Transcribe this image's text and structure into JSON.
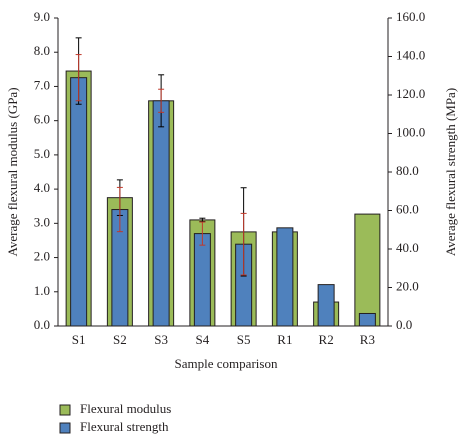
{
  "chart_data": {
    "type": "bar",
    "categories": [
      "S1",
      "S2",
      "S3",
      "S4",
      "S5",
      "R1",
      "R2",
      "R3"
    ],
    "series": [
      {
        "name": "Flexural modulus",
        "color": "#9bbb59",
        "axis": "y",
        "errors_color": "#000000",
        "values": [
          7.45,
          3.75,
          6.58,
          3.1,
          2.75,
          2.75,
          0.7,
          3.27
        ],
        "errors": [
          0.97,
          0.52,
          0.76,
          0.05,
          1.29,
          null,
          null,
          null
        ]
      },
      {
        "name": "Flexural strength",
        "color": "#4f81bd",
        "axis": "y2",
        "errors_color": "#c0392b",
        "values": [
          129,
          60.5,
          117,
          48,
          42.5,
          51,
          21.5,
          6.5
        ],
        "errors": [
          12,
          11.5,
          6,
          6,
          16,
          null,
          null,
          null
        ]
      }
    ],
    "ylabel": "Average flexural modulus (GPa)",
    "y2label": "Average flexural strength (MPa)",
    "xlabel": "Sample comparison",
    "ylim": [
      0,
      9
    ],
    "yticks": [
      {
        "value": 0,
        "label": "0.0"
      },
      {
        "value": 1,
        "label": "1.0"
      },
      {
        "value": 2,
        "label": "2.0"
      },
      {
        "value": 3,
        "label": "3.0"
      },
      {
        "value": 4,
        "label": "4.0"
      },
      {
        "value": 5,
        "label": "5.0"
      },
      {
        "value": 6,
        "label": "6.0"
      },
      {
        "value": 7,
        "label": "7.0"
      },
      {
        "value": 8,
        "label": "8.0"
      },
      {
        "value": 9,
        "label": "9.0"
      }
    ],
    "y2lim": [
      0,
      160
    ],
    "y2ticks": [
      {
        "value": 0,
        "label": "0.0"
      },
      {
        "value": 20,
        "label": "20.0"
      },
      {
        "value": 40,
        "label": "40.0"
      },
      {
        "value": 60,
        "label": "60.0"
      },
      {
        "value": 80,
        "label": "80.0"
      },
      {
        "value": 100,
        "label": "100.0"
      },
      {
        "value": 120,
        "label": "120.0"
      },
      {
        "value": 140,
        "label": "140.0"
      },
      {
        "value": 160,
        "label": "160.0"
      }
    ],
    "grid": false,
    "legend": "bottom-left"
  }
}
